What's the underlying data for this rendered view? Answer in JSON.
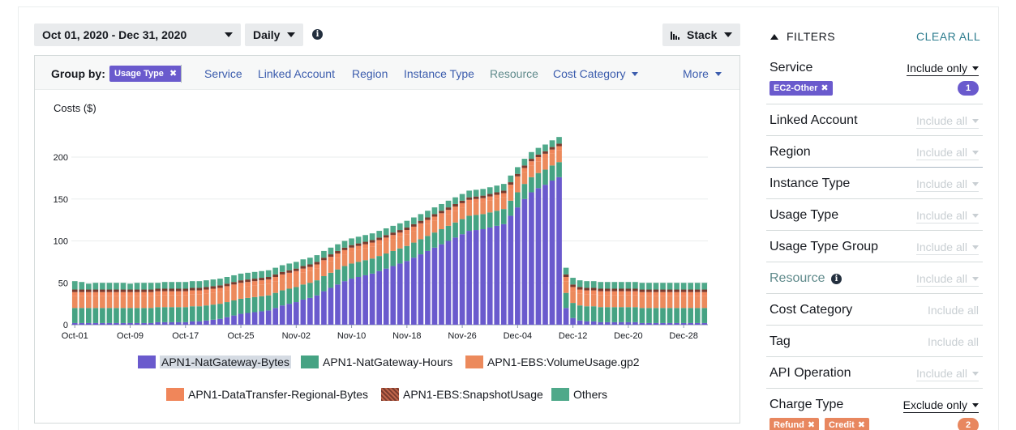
{
  "toolbar": {
    "date_range": "Oct 01, 2020 - Dec 31, 2020",
    "granularity": "Daily",
    "chart_style": "Stack",
    "info_icon": "i"
  },
  "group_by": {
    "label": "Group by:",
    "active_chip": "Usage Type",
    "remove_glyph": "✖",
    "links": [
      "Service",
      "Linked Account",
      "Region",
      "Instance Type",
      "Resource",
      "Cost Category",
      "More"
    ]
  },
  "chart_data": {
    "type": "bar",
    "stacked": true,
    "ylabel": "Costs ($)",
    "ylim": [
      0,
      230
    ],
    "yticks": [
      0,
      50,
      100,
      150,
      200
    ],
    "xticks": [
      "Oct-01",
      "Oct-09",
      "Oct-17",
      "Oct-25",
      "Nov-02",
      "Nov-10",
      "Nov-18",
      "Nov-26",
      "Dec-04",
      "Dec-12",
      "Dec-20",
      "Dec-28"
    ],
    "categories_note": "Daily, Oct-01 to Dec-31 2020",
    "series": [
      {
        "name": "APN1-NatGateway-Bytes",
        "color": "#6a5acd",
        "values": [
          2,
          2,
          2,
          2,
          2,
          2,
          2,
          2,
          2,
          2,
          2,
          2,
          3,
          3,
          3,
          3,
          3,
          4,
          4,
          5,
          6,
          7,
          9,
          11,
          13,
          14,
          15,
          16,
          17,
          20,
          23,
          25,
          27,
          30,
          32,
          35,
          40,
          44,
          48,
          52,
          55,
          57,
          59,
          61,
          64,
          67,
          70,
          73,
          76,
          80,
          84,
          88,
          92,
          96,
          100,
          104,
          108,
          112,
          113,
          114,
          116,
          118,
          120,
          130,
          140,
          150,
          158,
          163,
          167,
          172,
          176,
          20,
          8,
          5,
          4,
          4,
          3,
          3,
          3,
          3,
          3,
          3,
          2,
          2,
          2,
          2,
          2,
          2,
          2,
          2,
          2,
          2
        ]
      },
      {
        "name": "APN1-NatGateway-Hours",
        "color": "#45a383",
        "values": [
          18,
          18,
          18,
          18,
          18,
          18,
          18,
          18,
          18,
          18,
          18,
          18,
          18,
          18,
          18,
          18,
          18,
          18,
          18,
          18,
          18,
          18,
          18,
          18,
          18,
          18,
          18,
          18,
          18,
          18,
          18,
          18,
          18,
          18,
          18,
          18,
          18,
          18,
          18,
          18,
          18,
          18,
          18,
          18,
          18,
          18,
          18,
          18,
          18,
          18,
          18,
          18,
          18,
          18,
          18,
          18,
          18,
          18,
          18,
          18,
          18,
          18,
          18,
          18,
          18,
          18,
          18,
          18,
          18,
          18,
          18,
          18,
          18,
          18,
          18,
          18,
          18,
          18,
          18,
          18,
          18,
          18,
          18,
          18,
          18,
          18,
          18,
          18,
          18,
          18,
          18,
          18
        ]
      },
      {
        "name": "APN1-EBS:VolumeUsage.gp2",
        "color": "#ec8a5c",
        "values": [
          14,
          14,
          14,
          14,
          14,
          14,
          14,
          14,
          14,
          14,
          14,
          14,
          14,
          14,
          14,
          14,
          14,
          14,
          14,
          14,
          14,
          14,
          14,
          14,
          14,
          14,
          14,
          14,
          14,
          14,
          14,
          14,
          14,
          14,
          14,
          14,
          14,
          14,
          14,
          14,
          14,
          14,
          14,
          14,
          14,
          14,
          14,
          14,
          14,
          14,
          14,
          14,
          14,
          14,
          14,
          14,
          14,
          14,
          14,
          14,
          14,
          14,
          14,
          14,
          14,
          14,
          14,
          14,
          14,
          14,
          14,
          14,
          14,
          14,
          14,
          14,
          14,
          14,
          14,
          14,
          14,
          14,
          14,
          14,
          14,
          14,
          14,
          14,
          14,
          14,
          14,
          14
        ]
      },
      {
        "name": "APN1-DataTransfer-Regional-Bytes",
        "color": "#f0865a",
        "values": [
          5,
          5,
          5,
          5,
          5,
          5,
          5,
          5,
          5,
          5,
          5,
          5,
          5,
          5,
          5,
          5,
          5,
          5,
          5,
          5,
          5,
          5,
          5,
          5,
          5,
          5,
          5,
          5,
          5,
          5,
          5,
          5,
          5,
          5,
          5,
          5,
          5,
          5,
          5,
          5,
          5,
          5,
          5,
          5,
          5,
          5,
          5,
          5,
          5,
          5,
          5,
          5,
          5,
          5,
          5,
          5,
          5,
          5,
          5,
          5,
          5,
          5,
          5,
          5,
          5,
          5,
          5,
          5,
          5,
          5,
          5,
          5,
          5,
          5,
          5,
          5,
          5,
          5,
          5,
          5,
          5,
          5,
          5,
          5,
          5,
          5,
          5,
          5,
          5,
          5,
          5,
          5
        ]
      },
      {
        "name": "APN1-EBS:SnapshotUsage",
        "color": "#7a3b2e",
        "values": [
          3,
          3,
          3,
          3,
          3,
          3,
          3,
          3,
          3,
          3,
          3,
          3,
          3,
          3,
          3,
          3,
          3,
          3,
          3,
          3,
          3,
          3,
          3,
          3,
          3,
          3,
          3,
          3,
          3,
          3,
          3,
          3,
          3,
          3,
          3,
          3,
          3,
          3,
          3,
          3,
          3,
          3,
          3,
          3,
          3,
          3,
          3,
          3,
          3,
          3,
          3,
          3,
          3,
          3,
          3,
          3,
          3,
          3,
          3,
          3,
          3,
          3,
          3,
          3,
          3,
          3,
          3,
          3,
          3,
          3,
          3,
          3,
          3,
          3,
          3,
          3,
          3,
          3,
          3,
          3,
          3,
          3,
          3,
          3,
          3,
          3,
          3,
          3,
          3,
          3,
          3,
          3
        ]
      },
      {
        "name": "Others",
        "color": "#4fa98a",
        "values": [
          10,
          9,
          7,
          8,
          8,
          8,
          8,
          8,
          7,
          8,
          8,
          8,
          7,
          8,
          8,
          8,
          8,
          8,
          8,
          8,
          8,
          8,
          8,
          8,
          8,
          8,
          8,
          8,
          8,
          8,
          8,
          8,
          8,
          8,
          8,
          8,
          8,
          8,
          8,
          8,
          8,
          8,
          8,
          8,
          8,
          8,
          8,
          8,
          8,
          8,
          8,
          8,
          8,
          8,
          8,
          8,
          8,
          8,
          8,
          8,
          8,
          8,
          8,
          8,
          8,
          8,
          8,
          8,
          8,
          8,
          8,
          8,
          8,
          8,
          8,
          8,
          8,
          8,
          8,
          8,
          8,
          8,
          8,
          8,
          8,
          8,
          8,
          8,
          8,
          8,
          8,
          8
        ]
      }
    ]
  },
  "filters": {
    "title": "FILTERS",
    "clear_all": "CLEAR ALL",
    "rows": [
      {
        "label": "Service",
        "control": "Include only",
        "state": "active",
        "chips": [
          "EC2-Other"
        ],
        "count": "1"
      },
      {
        "label": "Linked Account",
        "control": "Include all",
        "state": "dim"
      },
      {
        "label": "Region",
        "control": "Include all",
        "state": "dim"
      },
      {
        "label": "Instance Type",
        "control": "Include all",
        "state": "dim"
      },
      {
        "label": "Usage Type",
        "control": "Include all",
        "state": "dim"
      },
      {
        "label": "Usage Type Group",
        "control": "Include all",
        "state": "dim"
      },
      {
        "label": "Resource",
        "control": "Include all",
        "state": "dim",
        "info": "i"
      },
      {
        "label": "Cost Category",
        "control": "Include all",
        "state": "plain"
      },
      {
        "label": "Tag",
        "control": "Include all",
        "state": "plain"
      },
      {
        "label": "API Operation",
        "control": "Include all",
        "state": "dim"
      },
      {
        "label": "Charge Type",
        "control": "Exclude only",
        "state": "active",
        "chips": [
          "Refund",
          "Credit"
        ],
        "count": "2"
      }
    ],
    "chip_colors": {
      "service": "#6a5acd",
      "charge_type": "#e8875f",
      "service_count": "#6a5acd",
      "charge_count": "#e8875f"
    }
  }
}
